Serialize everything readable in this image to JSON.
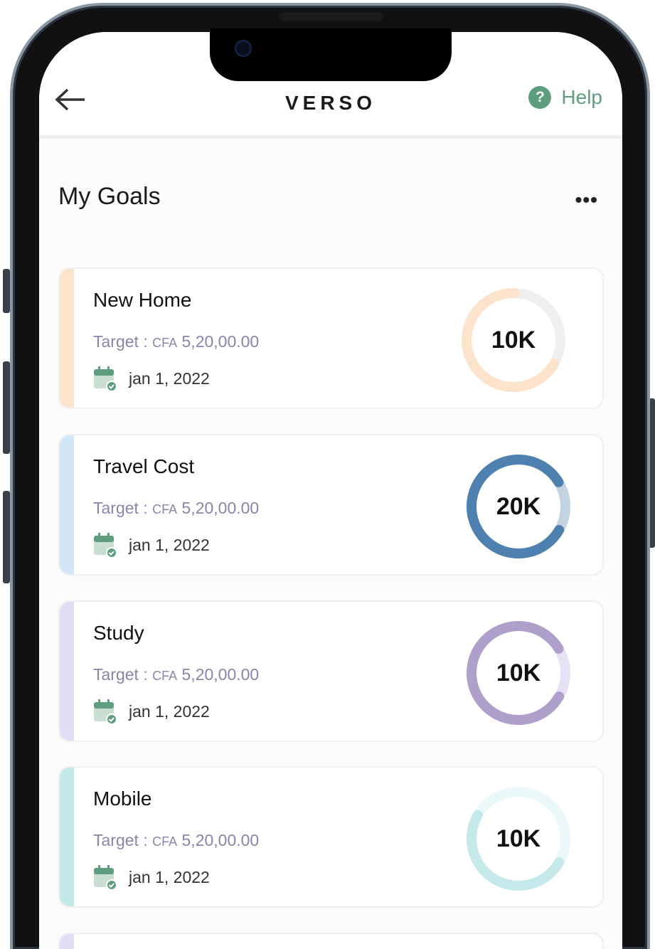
{
  "header": {
    "title": "VERSO",
    "help_label": "Help"
  },
  "page": {
    "title": "My Goals"
  },
  "goals": [
    {
      "name": "New Home",
      "target_label": "Target :",
      "currency": "CFA",
      "amount": "5,20,00.00",
      "date": "jan 1, 2022",
      "ring_value": "10K",
      "progress": 0.67,
      "color": "#fde3cc",
      "track": "#efefef",
      "strip": "#fde3cc"
    },
    {
      "name": "Travel Cost",
      "target_label": "Target :",
      "currency": "CFA",
      "amount": "5,20,00.00",
      "date": "jan 1, 2022",
      "ring_value": "20K",
      "progress": 0.83,
      "color": "#4f81b0",
      "track": "#c3d3e2",
      "strip": "#d3e6f8"
    },
    {
      "name": "Study",
      "target_label": "Target :",
      "currency": "CFA",
      "amount": "5,20,00.00",
      "date": "jan 1, 2022",
      "ring_value": "10K",
      "progress": 0.83,
      "color": "#ae9fcb",
      "track": "#e6e1f6",
      "strip": "#e2dcf5"
    },
    {
      "name": "Mobile",
      "target_label": "Target :",
      "currency": "CFA",
      "amount": "5,20,00.00",
      "date": "jan 1, 2022",
      "ring_value": "10K",
      "progress": 0.5,
      "color": "#c5e9ea",
      "track": "#ebf8f9",
      "strip": "#c3e8e8"
    }
  ],
  "colors": {
    "accent": "#5e9e7f"
  }
}
